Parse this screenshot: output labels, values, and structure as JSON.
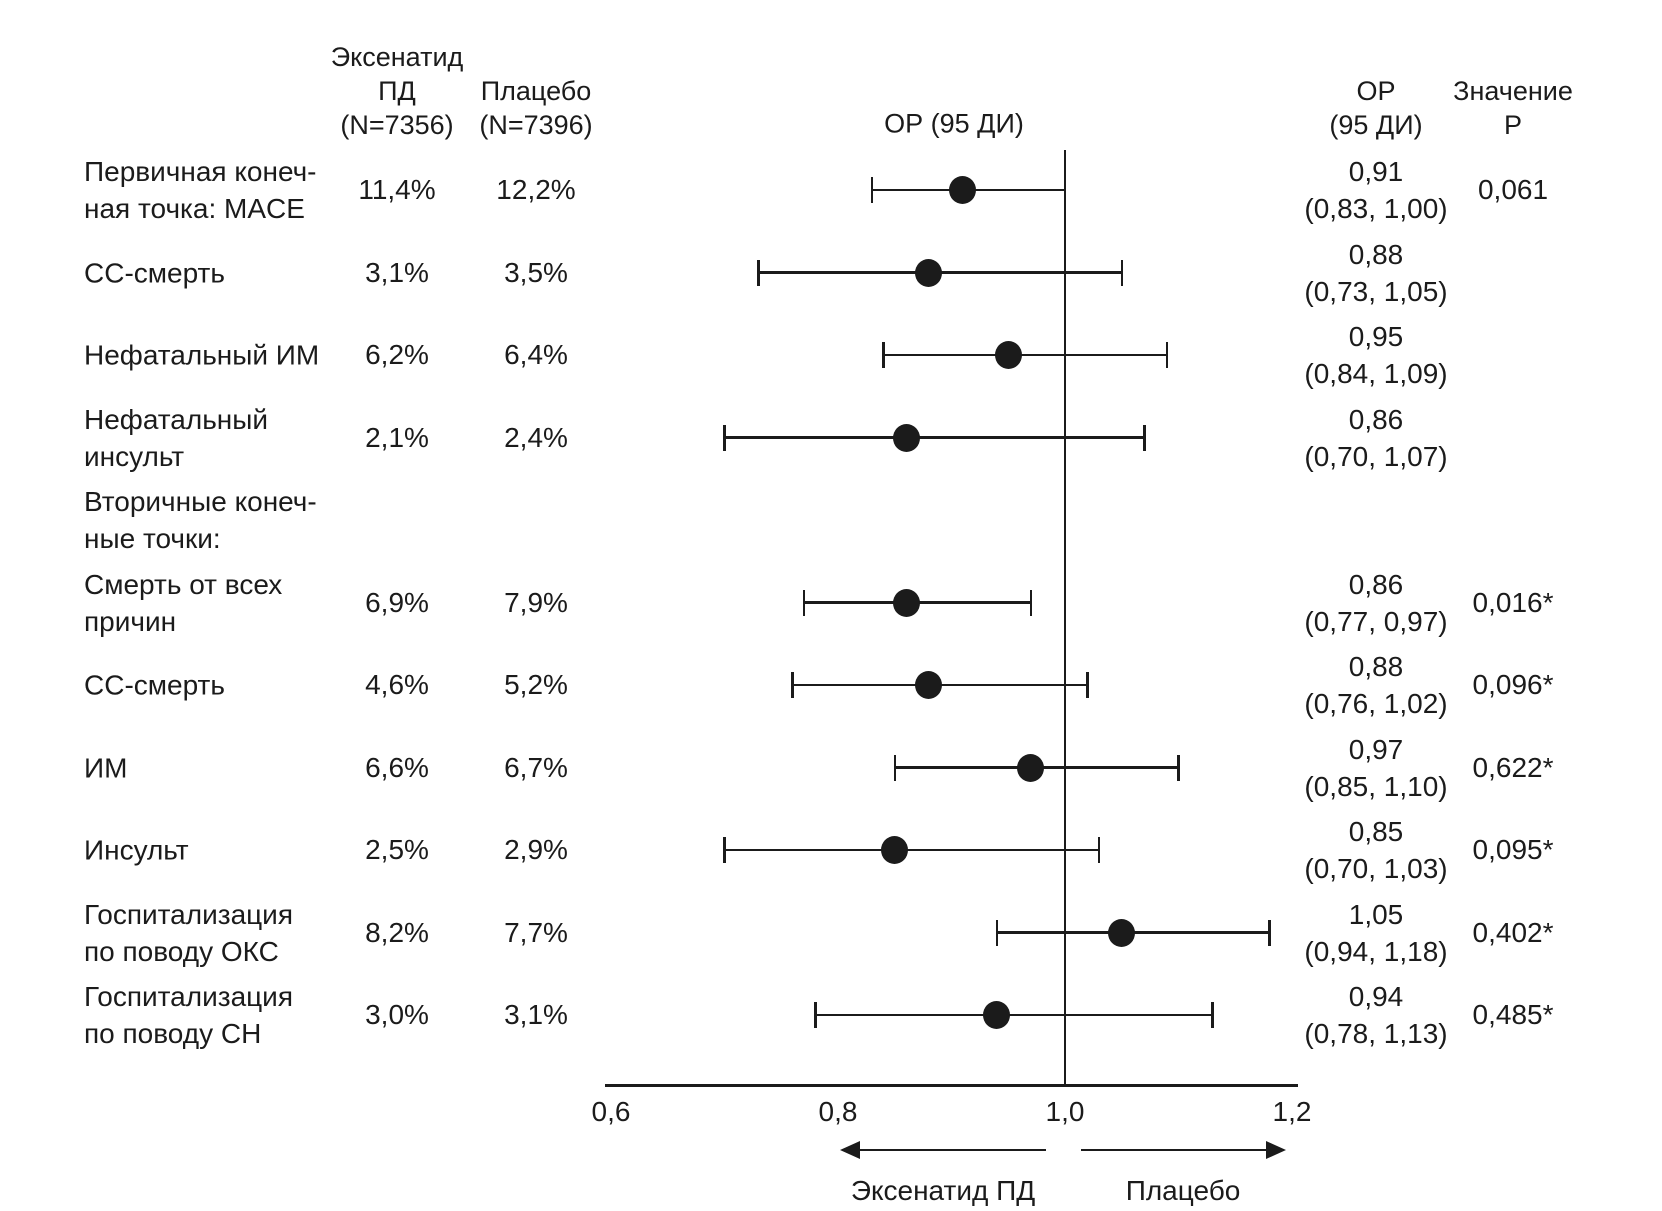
{
  "header": {
    "exenatide_col": "Эксенатид\nПД\n(N=7356)",
    "placebo_col": "Плацебо\n(N=7396)",
    "plot_col": "ОР (95 ДИ)",
    "or_col": "ОР\n(95 ДИ)",
    "p_col": "Значение\nР"
  },
  "footer": {
    "left_arrow_label": "Эксенатид ПД",
    "right_arrow_label": "Плацебо"
  },
  "colors": {
    "ink": "#1b1b1b",
    "background": "#ffffff"
  },
  "chart_data": {
    "type": "forest",
    "xlabel": "ОР (95 ДИ)",
    "xlim": [
      0.6,
      1.2
    ],
    "reference_line": 1.0,
    "x_ticks": [
      0.6,
      0.8,
      1.0,
      1.2
    ],
    "x_tick_labels": [
      "0,6",
      "0,8",
      "1,0",
      "1,2"
    ],
    "favors_left": "Эксенатид ПД",
    "favors_right": "Плацебо",
    "rows": [
      {
        "label": "Первичная конеч-\nная точка: MACE",
        "exenatide": "11,4%",
        "placebo": "12,2%",
        "or": 0.91,
        "ci_low": 0.83,
        "ci_high": 1.0,
        "or_text": "0,91",
        "ci_text": "(0,83, 1,00)",
        "p": "0,061"
      },
      {
        "label": "СС-смерть",
        "exenatide": "3,1%",
        "placebo": "3,5%",
        "or": 0.88,
        "ci_low": 0.73,
        "ci_high": 1.05,
        "or_text": "0,88",
        "ci_text": "(0,73, 1,05)",
        "p": ""
      },
      {
        "label": "Нефатальный ИМ",
        "exenatide": "6,2%",
        "placebo": "6,4%",
        "or": 0.95,
        "ci_low": 0.84,
        "ci_high": 1.09,
        "or_text": "0,95",
        "ci_text": "(0,84, 1,09)",
        "p": ""
      },
      {
        "label": "Нефатальный\nинсульт",
        "exenatide": "2,1%",
        "placebo": "2,4%",
        "or": 0.86,
        "ci_low": 0.7,
        "ci_high": 1.07,
        "or_text": "0,86",
        "ci_text": "(0,70, 1,07)",
        "p": ""
      },
      {
        "section": true,
        "label": "Вторичные конеч-\nные точки:"
      },
      {
        "label": "Смерть от всех\nпричин",
        "exenatide": "6,9%",
        "placebo": "7,9%",
        "or": 0.86,
        "ci_low": 0.77,
        "ci_high": 0.97,
        "or_text": "0,86",
        "ci_text": "(0,77, 0,97)",
        "p": "0,016*"
      },
      {
        "label": "СС-смерть",
        "exenatide": "4,6%",
        "placebo": "5,2%",
        "or": 0.88,
        "ci_low": 0.76,
        "ci_high": 1.02,
        "or_text": "0,88",
        "ci_text": "(0,76, 1,02)",
        "p": "0,096*"
      },
      {
        "label": "ИМ",
        "exenatide": "6,6%",
        "placebo": "6,7%",
        "or": 0.97,
        "ci_low": 0.85,
        "ci_high": 1.1,
        "or_text": "0,97",
        "ci_text": "(0,85, 1,10)",
        "p": "0,622*"
      },
      {
        "label": "Инсульт",
        "exenatide": "2,5%",
        "placebo": "2,9%",
        "or": 0.85,
        "ci_low": 0.7,
        "ci_high": 1.03,
        "or_text": "0,85",
        "ci_text": "(0,70, 1,03)",
        "p": "0,095*"
      },
      {
        "label": "Госпитализация\nпо поводу ОКС",
        "exenatide": "8,2%",
        "placebo": "7,7%",
        "or": 1.05,
        "ci_low": 0.94,
        "ci_high": 1.18,
        "or_text": "1,05",
        "ci_text": "(0,94, 1,18)",
        "p": "0,402*"
      },
      {
        "label": "Госпитализация\nпо поводу СН",
        "exenatide": "3,0%",
        "placebo": "3,1%",
        "or": 0.94,
        "ci_low": 0.78,
        "ci_high": 1.13,
        "or_text": "0,94",
        "ci_text": "(0,78, 1,13)",
        "p": "0,485*"
      }
    ]
  }
}
